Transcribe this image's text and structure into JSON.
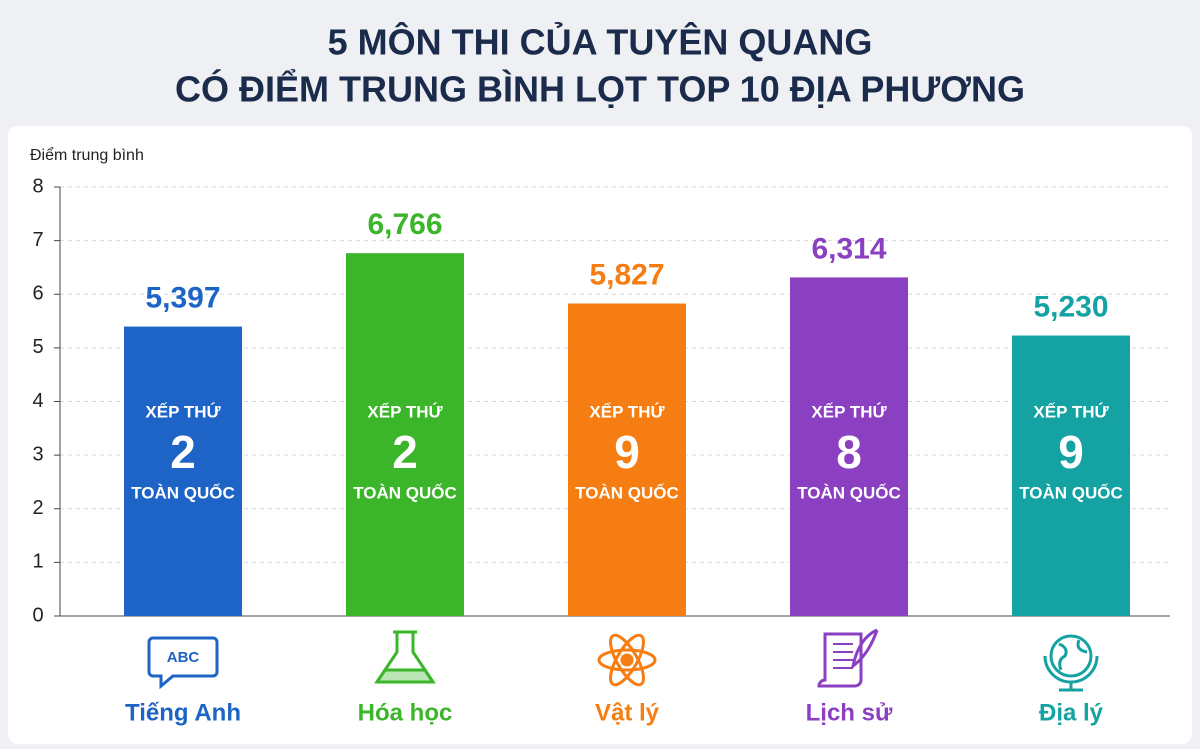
{
  "chart_data": {
    "type": "bar",
    "title": [
      "5 MÔN THI CỦA TUYÊN QUANG",
      "CÓ ĐIỂM TRUNG BÌNH LỌT TOP 10 ĐỊA PHƯƠNG"
    ],
    "y_label": "Điểm trung bình",
    "categories": [
      "Tiếng Anh",
      "Hóa học",
      "Vật lý",
      "Lịch sử",
      "Địa lý"
    ],
    "values": [
      5.397,
      6.766,
      5.827,
      6.314,
      5.23
    ],
    "value_labels": [
      "5,397",
      "6,766",
      "5,827",
      "6,314",
      "5,230"
    ],
    "colors": [
      "#1e63c6",
      "#3bb52a",
      "#f57d12",
      "#8b3fc1",
      "#15a2a2"
    ],
    "rank_prefix": "XẾP THỨ",
    "ranks": [
      2,
      2,
      9,
      8,
      9
    ],
    "rank_suffix": "TOÀN QUỐC",
    "icon_text": "ABC",
    "ylim": [
      0,
      8
    ],
    "yticks": [
      0,
      1,
      2,
      3,
      4,
      5,
      6,
      7,
      8
    ],
    "grid": true
  }
}
